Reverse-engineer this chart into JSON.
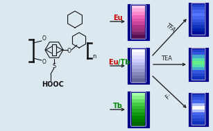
{
  "background_color": "#dce8f0",
  "eu_label": "Eu",
  "tb_label": "Tb",
  "eutb_label_eu": "Eu ",
  "eutb_label_tb": "/Tb",
  "tfa_label": "TFA",
  "tea_label": "TEA",
  "f_label": "F⁻",
  "hooc_label": "HOOC",
  "n_label": "n",
  "s_label": "S",
  "eu_color": "#cc0000",
  "tb_color": "#008800",
  "eutb_eu_color": "#cc0000",
  "eutb_tb_color": "#008800",
  "arrow_color": "#222222",
  "tfa_tea_color": "#222222",
  "figure_width": 3.07,
  "figure_height": 1.89
}
